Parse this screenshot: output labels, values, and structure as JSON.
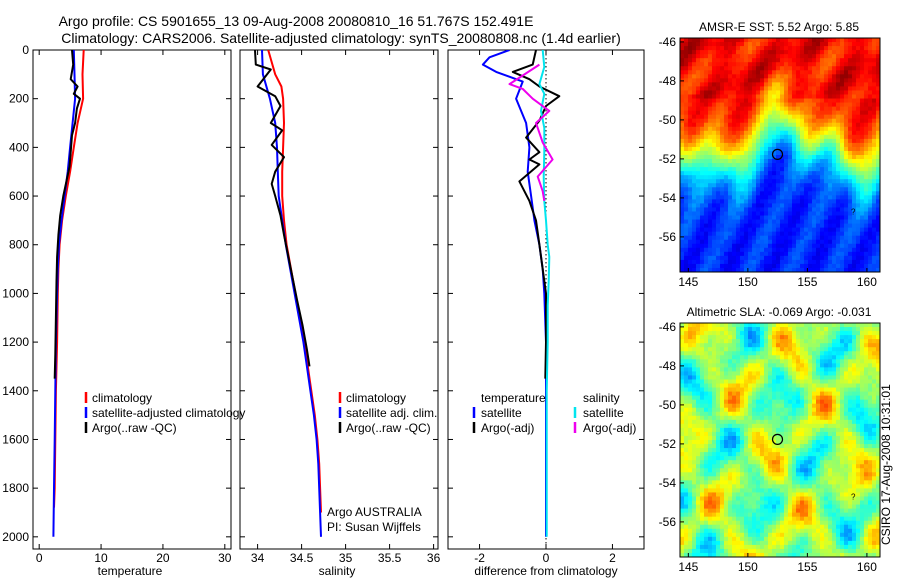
{
  "header": {
    "line1": "Argo profile: CS 5901655_13 09-Aug-2008 20080810_16 51.767S 152.491E",
    "line2": "Climatology: CARS2006. Satellite-adjusted climatology: synTS_20080808.nc (1.4d earlier)"
  },
  "credit": "CSIRO 17-Aug-2008 10:31:01",
  "colors": {
    "red": "#ff0000",
    "blue": "#0000ff",
    "black": "#000000",
    "cyan": "#00e5ee",
    "magenta": "#ee00ee"
  },
  "chart_data": [
    {
      "type": "line",
      "xlabel": "temperature",
      "ylabel": "",
      "xlim": [
        -1,
        31
      ],
      "ylim": [
        2050,
        0
      ],
      "xticks": [
        0,
        10,
        20,
        30
      ],
      "yticks": [
        0,
        200,
        400,
        600,
        800,
        1000,
        1200,
        1400,
        1600,
        1800,
        2000
      ],
      "legend": {
        "placement": "lower-right",
        "entries": [
          "climatology",
          "satellite-adjusted climatology",
          "Argo(..raw -QC)"
        ]
      },
      "series": [
        {
          "name": "climatology",
          "color": "red",
          "points": [
            [
              7.2,
              0
            ],
            [
              7.0,
              100
            ],
            [
              7.1,
              200
            ],
            [
              6.2,
              300
            ],
            [
              5.6,
              400
            ],
            [
              5.0,
              500
            ],
            [
              4.3,
              600
            ],
            [
              3.7,
              700
            ],
            [
              3.3,
              800
            ],
            [
              3.1,
              900
            ],
            [
              3.0,
              1000
            ],
            [
              2.9,
              1200
            ],
            [
              2.7,
              1400
            ],
            [
              2.6,
              1600
            ],
            [
              2.5,
              1800
            ],
            [
              2.4,
              1880
            ]
          ]
        },
        {
          "name": "satellite-adjusted climatology",
          "color": "blue",
          "points": [
            [
              5.6,
              0
            ],
            [
              5.7,
              100
            ],
            [
              5.8,
              200
            ],
            [
              5.4,
              300
            ],
            [
              5.0,
              400
            ],
            [
              4.6,
              500
            ],
            [
              4.1,
              600
            ],
            [
              3.6,
              700
            ],
            [
              3.2,
              800
            ],
            [
              3.0,
              900
            ],
            [
              2.9,
              1000
            ],
            [
              2.7,
              1200
            ],
            [
              2.6,
              1400
            ],
            [
              2.5,
              1600
            ],
            [
              2.4,
              1800
            ],
            [
              2.3,
              2000
            ]
          ]
        },
        {
          "name": "Argo(..raw -QC)",
          "color": "black",
          "points": [
            [
              5.3,
              0
            ],
            [
              5.5,
              60
            ],
            [
              5.1,
              120
            ],
            [
              6.2,
              150
            ],
            [
              5.6,
              180
            ],
            [
              6.6,
              200
            ],
            [
              6.1,
              240
            ],
            [
              5.8,
              300
            ],
            [
              5.3,
              350
            ],
            [
              5.1,
              420
            ],
            [
              4.9,
              480
            ],
            [
              4.4,
              540
            ],
            [
              3.9,
              600
            ],
            [
              3.4,
              680
            ],
            [
              3.1,
              760
            ],
            [
              2.9,
              850
            ],
            [
              2.8,
              950
            ],
            [
              2.7,
              1100
            ],
            [
              2.6,
              1250
            ],
            [
              2.5,
              1350
            ]
          ]
        }
      ]
    },
    {
      "type": "line",
      "xlabel": "salinity",
      "ylabel": "",
      "xlim": [
        33.8,
        36.05
      ],
      "ylim": [
        2050,
        0
      ],
      "xticks": [
        34,
        34.5,
        35,
        35.5,
        36
      ],
      "legend": {
        "placement": "lower-right",
        "entries": [
          "climatology",
          "satellite adj. clim.",
          "Argo(..raw -QC)"
        ]
      },
      "annotation": [
        "Argo AUSTRALIA",
        "PI: Susan Wijffels"
      ],
      "series": [
        {
          "name": "climatology",
          "color": "red",
          "points": [
            [
              34.12,
              0
            ],
            [
              34.2,
              100
            ],
            [
              34.27,
              150
            ],
            [
              34.29,
              200
            ],
            [
              34.3,
              300
            ],
            [
              34.29,
              400
            ],
            [
              34.28,
              500
            ],
            [
              34.28,
              600
            ],
            [
              34.3,
              700
            ],
            [
              34.33,
              800
            ],
            [
              34.38,
              900
            ],
            [
              34.43,
              1000
            ],
            [
              34.48,
              1100
            ],
            [
              34.53,
              1200
            ],
            [
              34.57,
              1300
            ],
            [
              34.61,
              1400
            ],
            [
              34.65,
              1500
            ],
            [
              34.68,
              1600
            ],
            [
              34.7,
              1700
            ],
            [
              34.71,
              1800
            ],
            [
              34.72,
              1900
            ]
          ]
        },
        {
          "name": "satellite adj. clim.",
          "color": "blue",
          "points": [
            [
              34.05,
              0
            ],
            [
              34.06,
              100
            ],
            [
              34.14,
              200
            ],
            [
              34.2,
              300
            ],
            [
              34.22,
              400
            ],
            [
              34.23,
              500
            ],
            [
              34.24,
              600
            ],
            [
              34.28,
              700
            ],
            [
              34.32,
              800
            ],
            [
              34.37,
              900
            ],
            [
              34.42,
              1000
            ],
            [
              34.47,
              1100
            ],
            [
              34.52,
              1200
            ],
            [
              34.56,
              1300
            ],
            [
              34.6,
              1400
            ],
            [
              34.64,
              1500
            ],
            [
              34.67,
              1600
            ],
            [
              34.69,
              1700
            ],
            [
              34.7,
              1800
            ],
            [
              34.71,
              1900
            ],
            [
              34.72,
              2000
            ]
          ]
        },
        {
          "name": "Argo(..raw -QC)",
          "color": "black",
          "points": [
            [
              33.97,
              0
            ],
            [
              33.98,
              60
            ],
            [
              34.15,
              80
            ],
            [
              34.0,
              150
            ],
            [
              34.2,
              190
            ],
            [
              34.26,
              230
            ],
            [
              34.15,
              300
            ],
            [
              34.28,
              330
            ],
            [
              34.16,
              390
            ],
            [
              34.3,
              440
            ],
            [
              34.2,
              500
            ],
            [
              34.16,
              550
            ],
            [
              34.2,
              600
            ],
            [
              34.26,
              680
            ],
            [
              34.3,
              760
            ],
            [
              34.35,
              850
            ],
            [
              34.4,
              940
            ],
            [
              34.45,
              1030
            ],
            [
              34.51,
              1130
            ],
            [
              34.56,
              1230
            ],
            [
              34.59,
              1300
            ]
          ]
        }
      ]
    },
    {
      "type": "line",
      "xlabel": "difference from climatology",
      "ylabel": "",
      "xlim": [
        -2.95,
        2.95
      ],
      "ylim": [
        2050,
        0
      ],
      "xticks": [
        -2,
        0,
        2
      ],
      "legend": {
        "placement": "lower-right",
        "columns": [
          {
            "title": "temperature",
            "entries": [
              "satellite",
              "Argo(-adj)"
            ]
          },
          {
            "title": "salinity",
            "entries": [
              "satellite",
              "Argo(-adj)"
            ]
          }
        ]
      },
      "series": [
        {
          "name": "satellite",
          "quantity": "temperature",
          "color": "blue",
          "points": [
            [
              -1.1,
              0
            ],
            [
              -1.7,
              30
            ],
            [
              -1.9,
              60
            ],
            [
              -1.5,
              90
            ],
            [
              -0.7,
              130
            ],
            [
              -0.9,
              200
            ],
            [
              -0.6,
              300
            ],
            [
              -0.5,
              400
            ],
            [
              -0.55,
              500
            ],
            [
              -0.45,
              600
            ],
            [
              -0.35,
              700
            ],
            [
              -0.2,
              800
            ],
            [
              -0.1,
              900
            ],
            [
              -0.05,
              1000
            ],
            [
              0,
              1200
            ],
            [
              0,
              1400
            ],
            [
              0,
              1600
            ],
            [
              0,
              1800
            ],
            [
              0,
              2000
            ]
          ]
        },
        {
          "name": "Argo(-adj)",
          "quantity": "temperature",
          "color": "black",
          "points": [
            [
              -0.3,
              0
            ],
            [
              -0.4,
              60
            ],
            [
              -1.0,
              90
            ],
            [
              -0.5,
              120
            ],
            [
              -0.2,
              150
            ],
            [
              0.4,
              190
            ],
            [
              0.0,
              230
            ],
            [
              -0.2,
              290
            ],
            [
              -0.6,
              360
            ],
            [
              -0.2,
              420
            ],
            [
              -0.5,
              450
            ],
            [
              -0.2,
              470
            ],
            [
              -0.8,
              540
            ],
            [
              -0.5,
              620
            ],
            [
              -0.3,
              700
            ],
            [
              -0.2,
              800
            ],
            [
              -0.1,
              900
            ],
            [
              0,
              1000
            ],
            [
              0,
              1200
            ],
            [
              -0.02,
              1350
            ]
          ]
        },
        {
          "name": "satellite",
          "quantity": "salinity",
          "color": "cyan",
          "points": [
            [
              -0.1,
              0
            ],
            [
              -0.05,
              70
            ],
            [
              -0.2,
              140
            ],
            [
              -0.05,
              180
            ],
            [
              -0.15,
              250
            ],
            [
              -0.05,
              320
            ],
            [
              -0.05,
              420
            ],
            [
              -0.07,
              520
            ],
            [
              -0.05,
              620
            ],
            [
              0,
              700
            ],
            [
              0.05,
              800
            ],
            [
              0.1,
              850
            ],
            [
              0.08,
              950
            ],
            [
              0.05,
              1050
            ],
            [
              0.05,
              1200
            ],
            [
              0.02,
              1400
            ],
            [
              0.02,
              1600
            ],
            [
              0.02,
              1800
            ],
            [
              0.02,
              2000
            ]
          ]
        },
        {
          "name": "Argo(-adj)",
          "quantity": "salinity",
          "color": "magenta",
          "points": [
            [
              -0.2,
              60
            ],
            [
              -1.1,
              140
            ],
            [
              -0.7,
              160
            ],
            [
              -0.4,
              200
            ],
            [
              0.1,
              250
            ],
            [
              -0.3,
              300
            ],
            [
              -0.1,
              380
            ],
            [
              0.2,
              450
            ],
            [
              -0.25,
              520
            ],
            [
              -0.1,
              580
            ],
            [
              -0.05,
              620
            ]
          ]
        }
      ]
    },
    {
      "type": "heatmap",
      "title": "AMSR-E SST: 5.52 Argo: 5.85",
      "xlim": [
        144.3,
        161.1
      ],
      "ylim": [
        -57.8,
        -45.8
      ],
      "xticks": [
        145,
        150,
        155,
        160
      ],
      "yticks": [
        -46,
        -48,
        -50,
        -52,
        -54,
        -56
      ],
      "marker": {
        "lon": 152.491,
        "lat": -51.767
      },
      "note": "?",
      "colormap": "jet"
    },
    {
      "type": "heatmap",
      "title": "Altimetric SLA: -0.069 Argo: -0.031",
      "xlim": [
        144.3,
        161.1
      ],
      "ylim": [
        -57.8,
        -45.8
      ],
      "xticks": [
        145,
        150,
        155,
        160
      ],
      "yticks": [
        -46,
        -48,
        -50,
        -52,
        -54,
        -56
      ],
      "marker": {
        "lon": 152.491,
        "lat": -51.767
      },
      "note": "?",
      "colormap": "jet"
    }
  ]
}
